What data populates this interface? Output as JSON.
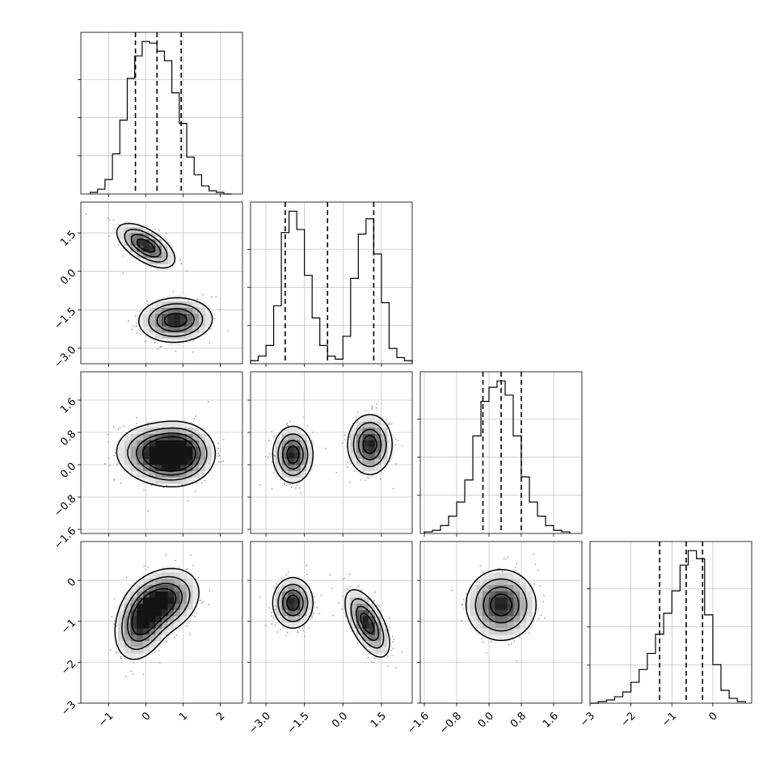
{
  "chart_data": {
    "type": "corner",
    "parameters": [
      {
        "range": [
          -1.75,
          2.6
        ],
        "ticks": [
          -1,
          0,
          1,
          2
        ],
        "tick_labels": [
          "−1",
          "0",
          "1",
          "2"
        ],
        "quantiles": [
          -0.28,
          0.3,
          0.95
        ],
        "hist": {
          "edges": [
            -1.5,
            -1.3,
            -1.1,
            -0.9,
            -0.7,
            -0.5,
            -0.3,
            -0.1,
            0.1,
            0.3,
            0.5,
            0.7,
            0.9,
            1.1,
            1.3,
            1.5,
            1.7,
            1.9,
            2.1,
            2.3
          ],
          "counts": [
            0.01,
            0.03,
            0.09,
            0.25,
            0.46,
            0.72,
            0.86,
            0.95,
            0.94,
            0.89,
            0.83,
            0.63,
            0.44,
            0.23,
            0.12,
            0.05,
            0.02,
            0.01,
            0.0
          ]
        }
      },
      {
        "range": [
          -3.6,
          2.7
        ],
        "ticks": [
          -3.0,
          -1.5,
          0.0,
          1.5
        ],
        "tick_labels": [
          "−3.0",
          "−1.5",
          "0.0",
          "1.5"
        ],
        "quantiles": [
          -2.25,
          -0.6,
          1.2
        ],
        "hist": {
          "edges": [
            -3.6,
            -3.3,
            -3.0,
            -2.7,
            -2.4,
            -2.1,
            -1.8,
            -1.5,
            -1.2,
            -0.9,
            -0.6,
            -0.3,
            0.0,
            0.3,
            0.6,
            0.9,
            1.2,
            1.5,
            1.8,
            2.1,
            2.4,
            2.7
          ],
          "counts": [
            0.02,
            0.05,
            0.12,
            0.38,
            0.86,
            1.0,
            0.88,
            0.58,
            0.3,
            0.12,
            0.05,
            0.03,
            0.18,
            0.56,
            0.85,
            0.95,
            0.72,
            0.4,
            0.1,
            0.04,
            0.02
          ]
        }
      },
      {
        "range": [
          -1.7,
          2.3
        ],
        "ticks": [
          -1.6,
          -0.8,
          0.0,
          0.8,
          1.6
        ],
        "tick_labels": [
          "−1.6",
          "−0.8",
          "0.0",
          "0.8",
          "1.6"
        ],
        "quantiles": [
          -0.15,
          0.3,
          0.8
        ],
        "hist": {
          "edges": [
            -1.6,
            -1.4,
            -1.2,
            -1.0,
            -0.8,
            -0.6,
            -0.4,
            -0.2,
            0.0,
            0.2,
            0.4,
            0.6,
            0.8,
            1.0,
            1.2,
            1.4,
            1.6,
            1.8,
            2.0
          ],
          "counts": [
            0.01,
            0.02,
            0.05,
            0.11,
            0.2,
            0.34,
            0.62,
            0.84,
            0.93,
            0.97,
            0.88,
            0.62,
            0.36,
            0.2,
            0.11,
            0.05,
            0.02,
            0.01
          ]
        }
      },
      {
        "range": [
          -3.0,
          0.95
        ],
        "ticks": [
          -3,
          -2,
          -1,
          0
        ],
        "tick_labels": [
          "−3",
          "−2",
          "−1",
          "0"
        ],
        "quantiles": [
          -1.3,
          -0.65,
          -0.25
        ],
        "hist": {
          "edges": [
            -3.0,
            -2.8,
            -2.6,
            -2.4,
            -2.2,
            -2.0,
            -1.8,
            -1.6,
            -1.4,
            -1.2,
            -1.0,
            -0.8,
            -0.6,
            -0.4,
            -0.2,
            0.0,
            0.2,
            0.4,
            0.6,
            0.8
          ],
          "counts": [
            0.0,
            0.01,
            0.02,
            0.04,
            0.07,
            0.13,
            0.21,
            0.31,
            0.43,
            0.56,
            0.7,
            0.86,
            0.95,
            0.9,
            0.55,
            0.24,
            0.08,
            0.03,
            0.01
          ]
        }
      }
    ],
    "pairs": [
      {
        "row": 1,
        "col": 0,
        "modes": [
          {
            "center": [
              0.0,
              1.0
            ],
            "sd": [
              0.38,
              0.42
            ],
            "rho": -0.6
          },
          {
            "center": [
              0.8,
              -1.9
            ],
            "sd": [
              0.48,
              0.42
            ],
            "rho": 0.05
          }
        ]
      },
      {
        "row": 2,
        "col": 0,
        "modes": [
          {
            "center": [
              0.35,
              0.25
            ],
            "sd": [
              0.55,
              0.35
            ],
            "rho": -0.1
          },
          {
            "center": [
              0.9,
              0.3
            ],
            "sd": [
              0.45,
              0.35
            ],
            "rho": 0.0
          }
        ]
      },
      {
        "row": 2,
        "col": 1,
        "modes": [
          {
            "center": [
              -1.95,
              0.25
            ],
            "sd": [
              0.38,
              0.34
            ],
            "rho": 0.0
          },
          {
            "center": [
              1.05,
              0.5
            ],
            "sd": [
              0.42,
              0.36
            ],
            "rho": 0.0
          }
        ]
      },
      {
        "row": 3,
        "col": 0,
        "modes": [
          {
            "center": [
              0.5,
              -0.5
            ],
            "sd": [
              0.45,
              0.38
            ],
            "rho": 0.25
          },
          {
            "center": [
              -0.1,
              -1.0
            ],
            "sd": [
              0.35,
              0.45
            ],
            "rho": 0.3
          }
        ]
      },
      {
        "row": 3,
        "col": 1,
        "modes": [
          {
            "center": [
              -1.95,
              -0.55
            ],
            "sd": [
              0.38,
              0.3
            ],
            "rho": 0.0
          },
          {
            "center": [
              0.95,
              -1.05
            ],
            "sd": [
              0.42,
              0.4
            ],
            "rho": -0.6
          }
        ]
      },
      {
        "row": 3,
        "col": 2,
        "modes": [
          {
            "center": [
              0.3,
              -0.6
            ],
            "sd": [
              0.42,
              0.42
            ],
            "rho": 0.0
          }
        ]
      }
    ],
    "grid": true,
    "colors": {
      "line": "#000000",
      "grid": "#b0b0b0",
      "density": "#000000",
      "points": "#a0a0a0"
    }
  }
}
